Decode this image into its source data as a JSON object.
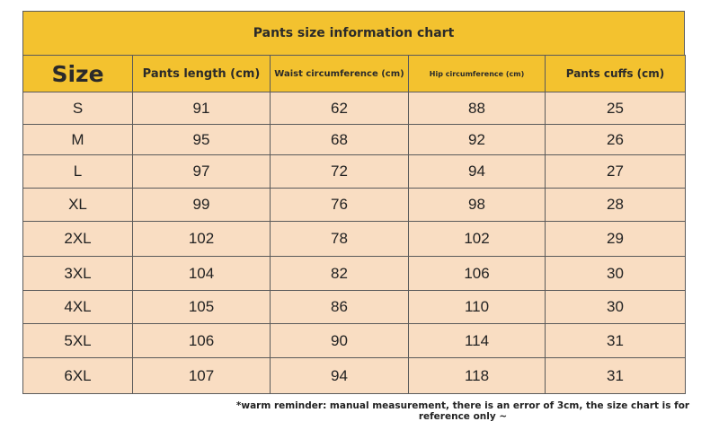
{
  "title": "Pants size information chart",
  "table": {
    "headers": [
      "Size",
      "Pants length (cm)",
      "Waist circumference (cm)",
      "Hip circumference (cm)",
      "Pants cuffs (cm)"
    ],
    "rows": [
      [
        "S",
        91,
        62,
        88,
        25
      ],
      [
        "M",
        95,
        68,
        92,
        26
      ],
      [
        "L",
        97,
        72,
        94,
        27
      ],
      [
        "XL",
        99,
        76,
        98,
        28
      ],
      [
        "2XL",
        102,
        78,
        102,
        29
      ],
      [
        "3XL",
        104,
        82,
        106,
        30
      ],
      [
        "4XL",
        105,
        86,
        110,
        30
      ],
      [
        "5XL",
        106,
        90,
        114,
        31
      ],
      [
        "6XL",
        107,
        94,
        118,
        31
      ]
    ]
  },
  "note": "*warm reminder: manual measurement, there is an error of 3cm, the size chart is for reference only ~"
}
